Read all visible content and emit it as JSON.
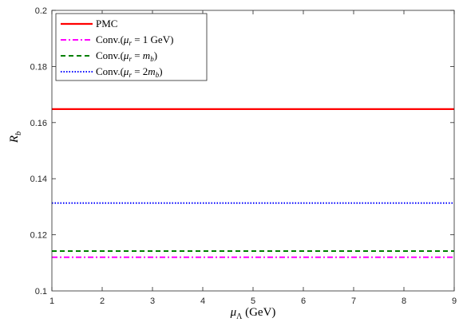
{
  "chart_data": {
    "type": "line",
    "xlabel": "μ_Λ (GeV)",
    "ylabel": "R_b",
    "xlim": [
      1,
      9
    ],
    "ylim": [
      0.1,
      0.2
    ],
    "xticks": [
      1,
      2,
      3,
      4,
      5,
      6,
      7,
      8,
      9
    ],
    "yticks": [
      0.1,
      0.12,
      0.14,
      0.16,
      0.18,
      0.2
    ],
    "grid": false,
    "legend_position": "top-left",
    "series": [
      {
        "name": "PMC",
        "x": [
          1,
          9
        ],
        "y": [
          0.1648,
          0.1648
        ],
        "color": "#ff0000",
        "dash": "solid"
      },
      {
        "name": "Conv.(μr = 1 GeV)",
        "x": [
          1,
          9
        ],
        "y": [
          0.112,
          0.112
        ],
        "color": "#ff00ff",
        "dash": "dashdot"
      },
      {
        "name": "Conv.(μr = mb)",
        "x": [
          1,
          9
        ],
        "y": [
          0.1142,
          0.1142
        ],
        "color": "#008000",
        "dash": "dashed"
      },
      {
        "name": "Conv.(μr = 2mb)",
        "x": [
          1,
          9
        ],
        "y": [
          0.1313,
          0.1313
        ],
        "color": "#0000ff",
        "dash": "dotted"
      }
    ]
  }
}
